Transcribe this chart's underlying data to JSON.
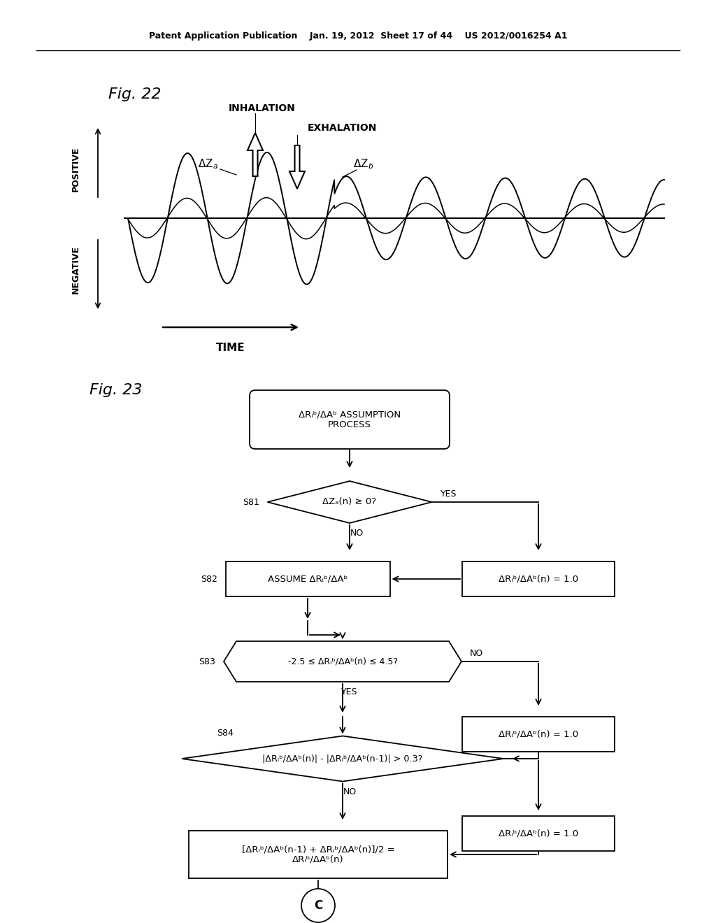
{
  "background_color": "#ffffff",
  "header_text": "Patent Application Publication    Jan. 19, 2012  Sheet 17 of 44    US 2012/0016254 A1",
  "fig22_label": "Fig. 22",
  "fig23_label": "Fig. 23",
  "time_label": "TIME",
  "positive_label": "POSITIVE",
  "negative_label": "NEGATIVE",
  "inhalation_label": "INHALATION",
  "exhalation_label": "EXHALATION"
}
